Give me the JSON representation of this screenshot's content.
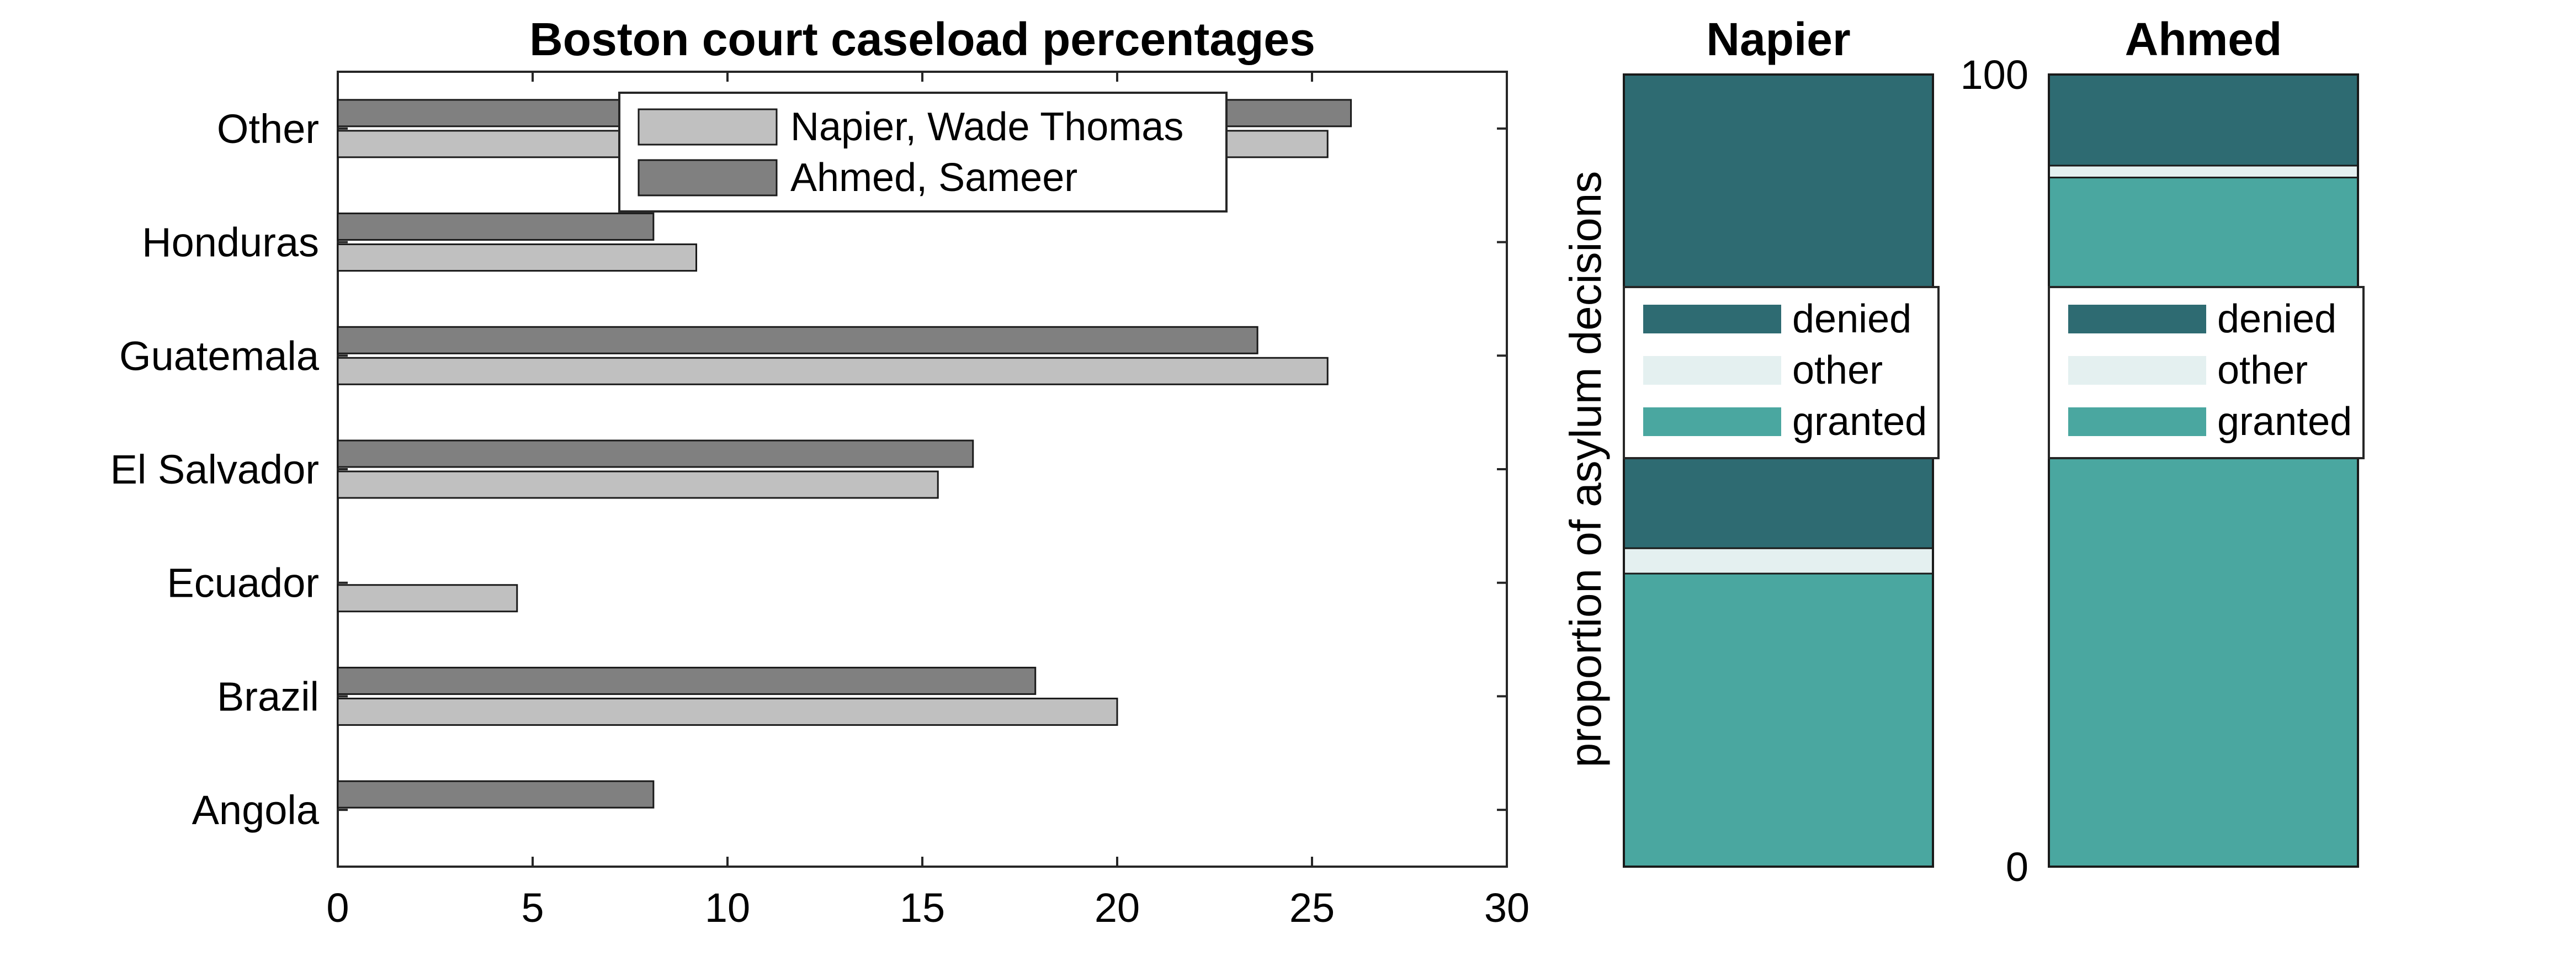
{
  "chart_data": [
    {
      "type": "bar",
      "orientation": "horizontal",
      "title": "Boston court caseload percentages",
      "xlabel": "",
      "ylabel": "",
      "categories": [
        "Angola",
        "Brazil",
        "Ecuador",
        "El Salvador",
        "Guatemala",
        "Honduras",
        "Other"
      ],
      "series": [
        {
          "name": "Napier, Wade Thomas",
          "color": "#c0c0c0",
          "values": [
            0,
            20,
            4.6,
            15.4,
            25.4,
            9.2,
            25.4
          ]
        },
        {
          "name": "Ahmed, Sameer",
          "color": "#808080",
          "values": [
            8.1,
            17.9,
            0,
            16.3,
            23.6,
            8.1,
            26
          ]
        }
      ],
      "xlim": [
        0,
        30
      ],
      "xticks": [
        "0",
        "5",
        "10",
        "15",
        "20",
        "25",
        "30"
      ],
      "legend_position": "top-center",
      "grid": false
    },
    {
      "type": "bar",
      "stacked": true,
      "title": "Napier",
      "ylabel": "proportion of asylum decisions",
      "ylim": [
        0,
        100
      ],
      "segments": [
        {
          "name": "granted",
          "color": "#4aa7a0",
          "value": 37
        },
        {
          "name": "other",
          "color": "#e4f0f0",
          "value": 3.2
        },
        {
          "name": "denied",
          "color": "#2e6b72",
          "value": 59.8
        }
      ],
      "legend_order": [
        "denied",
        "other",
        "granted"
      ],
      "legend_position": "center"
    },
    {
      "type": "bar",
      "stacked": true,
      "title": "Ahmed",
      "ylim": [
        0,
        100
      ],
      "yticks": [
        "0",
        "100"
      ],
      "segments": [
        {
          "name": "granted",
          "color": "#4aa7a0",
          "value": 87
        },
        {
          "name": "other",
          "color": "#e4f0f0",
          "value": 1.5
        },
        {
          "name": "denied",
          "color": "#2e6b72",
          "value": 11.5
        }
      ],
      "legend_order": [
        "denied",
        "other",
        "granted"
      ],
      "legend_position": "center"
    }
  ]
}
